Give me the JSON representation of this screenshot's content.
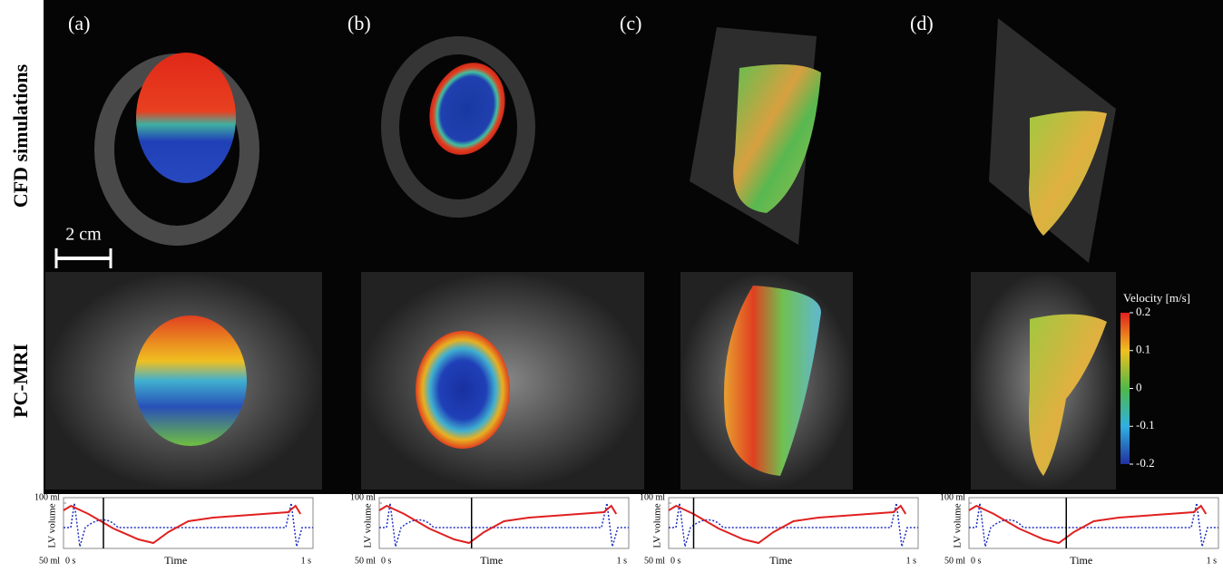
{
  "panels": [
    {
      "label": "(a)",
      "time_marker": 0.16
    },
    {
      "label": "(b)",
      "time_marker": 0.37
    },
    {
      "label": "(c)",
      "time_marker": 0.1
    },
    {
      "label": "(d)",
      "time_marker": 0.39
    }
  ],
  "rows": [
    "CFD simulations",
    "PC-MRI"
  ],
  "scale_bar": "2 cm",
  "colorbar": {
    "title": "Velocity [m/s]",
    "lim": [
      -0.2,
      0.2
    ],
    "ticks": [
      0.2,
      0.1,
      0,
      -0.1,
      -0.2
    ]
  },
  "volume_plot": {
    "y_label": "LV volume",
    "x_label": "Time",
    "ylim": [
      50,
      100
    ],
    "yticks": [
      {
        "value": 100,
        "label": "100 ml"
      },
      {
        "value": 50,
        "label": "50 ml"
      }
    ],
    "xlim": [
      0,
      1
    ],
    "xticks": [
      {
        "value": 0,
        "label": "0 s"
      },
      {
        "value": 1,
        "label": "1 s"
      }
    ],
    "x": [
      0,
      0.03,
      0.1,
      0.2,
      0.3,
      0.36,
      0.42,
      0.5,
      0.6,
      0.7,
      0.8,
      0.9,
      0.93,
      0.95
    ],
    "volume": [
      92,
      97,
      88,
      72,
      60,
      56,
      68,
      80,
      84,
      86,
      88,
      90,
      97,
      88
    ]
  }
}
